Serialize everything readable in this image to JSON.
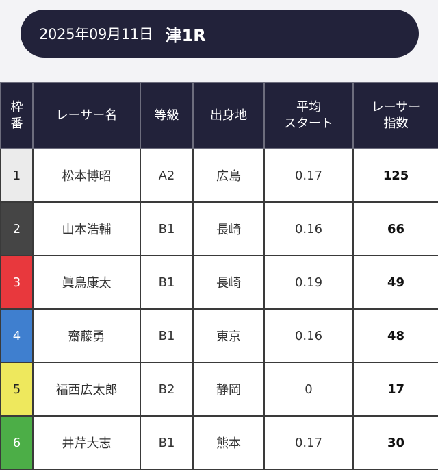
{
  "header": {
    "date": "2025年09月11日",
    "race": "津1R"
  },
  "table": {
    "headers": {
      "frame": [
        "枠",
        "番"
      ],
      "name": "レーサー名",
      "grade": "等級",
      "origin": "出身地",
      "start": [
        "平均",
        "スタート"
      ],
      "index": [
        "レーサー",
        "指数"
      ]
    },
    "rows": [
      {
        "frame": "1",
        "name": "松本博昭",
        "grade": "A2",
        "origin": "広島",
        "start": "0.17",
        "index": "125",
        "color": "#ebebeb",
        "text_color": "#222222"
      },
      {
        "frame": "2",
        "name": "山本浩輔",
        "grade": "B1",
        "origin": "長崎",
        "start": "0.16",
        "index": "66",
        "color": "#454545",
        "text_color": "#ffffff"
      },
      {
        "frame": "3",
        "name": "眞鳥康太",
        "grade": "B1",
        "origin": "長崎",
        "start": "0.19",
        "index": "49",
        "color": "#e8383d",
        "text_color": "#ffffff"
      },
      {
        "frame": "4",
        "name": "齋藤勇",
        "grade": "B1",
        "origin": "東京",
        "start": "0.16",
        "index": "48",
        "color": "#3f7fcf",
        "text_color": "#ffffff"
      },
      {
        "frame": "5",
        "name": "福西広太郎",
        "grade": "B2",
        "origin": "静岡",
        "start": "0",
        "index": "17",
        "color": "#eee85d",
        "text_color": "#222222"
      },
      {
        "frame": "6",
        "name": "井芹大志",
        "grade": "B1",
        "origin": "熊本",
        "start": "0.17",
        "index": "30",
        "color": "#4cae47",
        "text_color": "#ffffff"
      }
    ]
  }
}
